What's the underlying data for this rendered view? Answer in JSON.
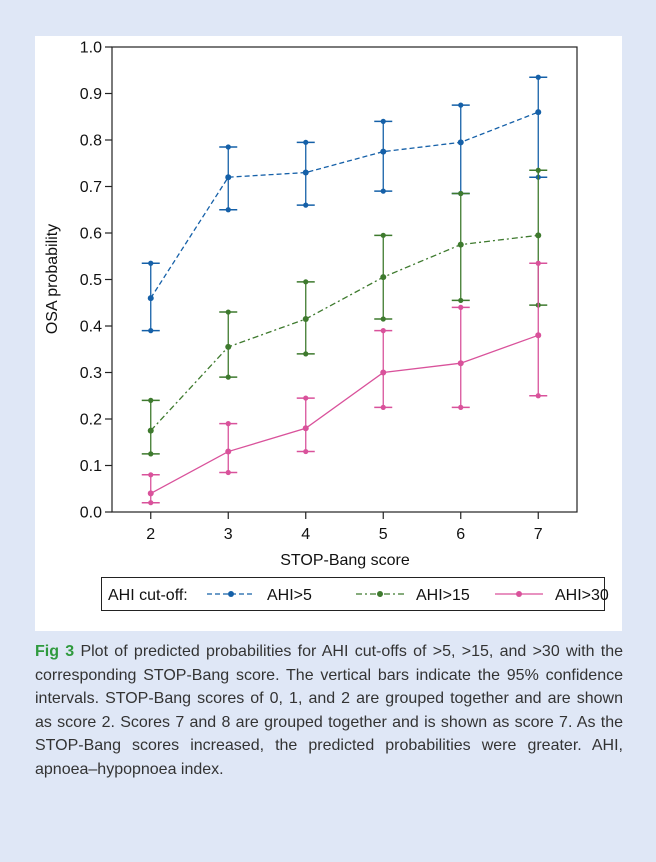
{
  "chart_data": {
    "type": "line",
    "xlabel": "STOP-Bang score",
    "ylabel": "OSA probability",
    "x": [
      2,
      3,
      4,
      5,
      6,
      7
    ],
    "xlim": [
      1.5,
      7.5
    ],
    "ylim": [
      0,
      1.0
    ],
    "yticks": [
      "0.0",
      "0.1",
      "0.2",
      "0.3",
      "0.4",
      "0.5",
      "0.6",
      "0.7",
      "0.8",
      "0.9",
      "1.0"
    ],
    "xticks": [
      "2",
      "3",
      "4",
      "5",
      "6",
      "7"
    ],
    "grid": false,
    "legend": {
      "title": "AHI cut-off:",
      "placement": "bottom"
    },
    "series": [
      {
        "name": "AHI>5",
        "color": "#1560a8",
        "dash": "dashed",
        "values": [
          0.46,
          0.72,
          0.73,
          0.775,
          0.795,
          0.86
        ],
        "lower": [
          0.39,
          0.65,
          0.66,
          0.69,
          0.685,
          0.72
        ],
        "upper": [
          0.535,
          0.785,
          0.795,
          0.84,
          0.875,
          0.935
        ]
      },
      {
        "name": "AHI>15",
        "color": "#3e7a2e",
        "dash": "dashdot",
        "values": [
          0.175,
          0.355,
          0.415,
          0.505,
          0.575,
          0.595
        ],
        "lower": [
          0.125,
          0.29,
          0.34,
          0.415,
          0.455,
          0.445
        ],
        "upper": [
          0.24,
          0.43,
          0.495,
          0.595,
          0.685,
          0.735
        ]
      },
      {
        "name": "AHI>30",
        "color": "#d9529b",
        "dash": "solid",
        "values": [
          0.04,
          0.13,
          0.18,
          0.3,
          0.32,
          0.38
        ],
        "lower": [
          0.02,
          0.085,
          0.13,
          0.225,
          0.225,
          0.25
        ],
        "upper": [
          0.08,
          0.19,
          0.245,
          0.39,
          0.44,
          0.535
        ]
      }
    ]
  },
  "caption": {
    "label": "Fig 3",
    "text": " Plot of predicted probabilities for AHI cut-offs of >5, >15, and >30 with the corresponding STOP-Bang score. The vertical bars indicate the 95% confidence intervals. STOP-Bang scores of 0, 1, and 2 are grouped together and are shown as score 2. Scores 7 and 8 are grouped together and is shown as score 7. As the STOP-Bang scores increased, the predicted probabilities were greater. AHI, apnoea–hypopnoea index."
  }
}
